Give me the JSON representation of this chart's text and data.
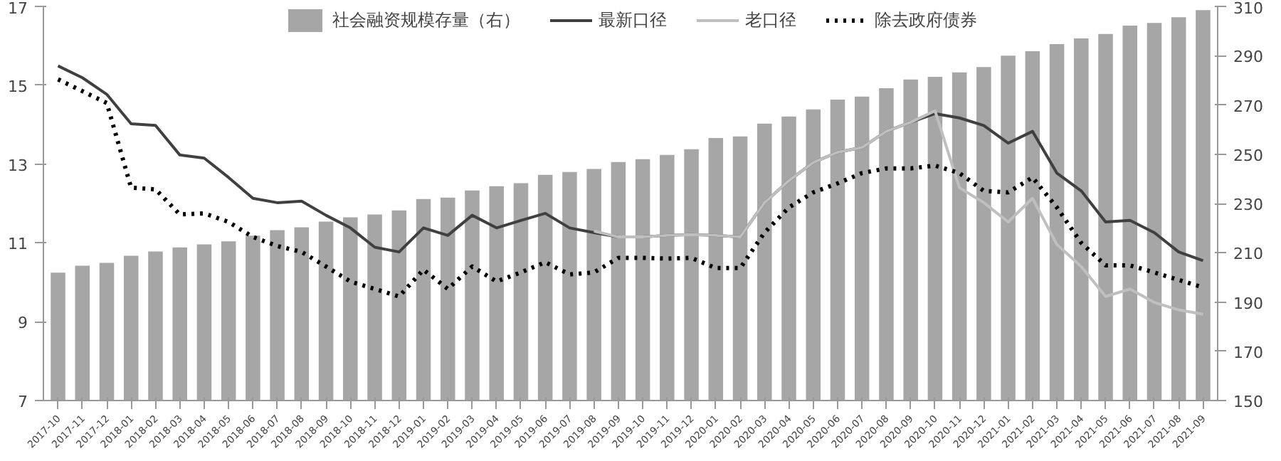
{
  "chart_data": {
    "type": "line",
    "categories": [
      "2017-10",
      "2017-11",
      "2017-12",
      "2018-01",
      "2018-02",
      "2018-03",
      "2018-04",
      "2018-05",
      "2018-06",
      "2018-07",
      "2018-08",
      "2018-09",
      "2018-10",
      "2018-11",
      "2018-12",
      "2019-01",
      "2019-02",
      "2019-03",
      "2019-04",
      "2019-05",
      "2019-06",
      "2019-07",
      "2019-08",
      "2019-09",
      "2019-10",
      "2019-11",
      "2019-12",
      "2020-01",
      "2020-02",
      "2020-03",
      "2020-04",
      "2020-05",
      "2020-06",
      "2020-07",
      "2020-08",
      "2020-09",
      "2020-10",
      "2020-11",
      "2020-12",
      "2021-01",
      "2021-02",
      "2021-03",
      "2021-04",
      "2021-05",
      "2021-06",
      "2021-07",
      "2021-08",
      "2021-09"
    ],
    "series": [
      {
        "name": "社会融资规模存量（右）",
        "type": "bar",
        "axis": "y2",
        "color": "#a6a6a6",
        "values": [
          201.9,
          204.7,
          205.9,
          208.8,
          210.5,
          212.2,
          213.4,
          214.6,
          216.9,
          219.2,
          220.3,
          222.6,
          224.4,
          225.5,
          227.2,
          231.8,
          232.4,
          235.3,
          237.0,
          238.2,
          241.6,
          242.8,
          244.0,
          246.8,
          248.0,
          249.7,
          252.0,
          256.6,
          257.2,
          262.4,
          265.3,
          268.2,
          272.2,
          273.4,
          276.8,
          280.3,
          281.4,
          283.2,
          285.4,
          290.0,
          291.8,
          294.7,
          297.0,
          298.8,
          302.2,
          303.3,
          305.6,
          308.5
        ]
      },
      {
        "name": "最新口径",
        "color": "#404040",
        "line_style": "solid",
        "values": [
          15.49,
          15.19,
          14.77,
          14.02,
          13.98,
          13.23,
          13.15,
          12.66,
          12.13,
          12.02,
          12.06,
          11.7,
          11.38,
          10.89,
          10.77,
          11.38,
          11.19,
          11.7,
          11.38,
          11.57,
          11.75,
          11.38,
          11.26,
          11.15,
          11.15,
          11.19,
          11.21,
          11.19,
          11.15,
          12.02,
          12.58,
          13.04,
          13.3,
          13.42,
          13.83,
          14.06,
          14.28,
          14.17,
          13.98,
          13.53,
          13.83,
          12.77,
          12.32,
          11.53,
          11.57,
          11.26,
          10.77,
          10.55
        ]
      },
      {
        "name": "老口径",
        "color": "#bfbfbf",
        "line_style": "solid",
        "values": [
          null,
          null,
          null,
          null,
          null,
          null,
          null,
          null,
          null,
          null,
          null,
          null,
          null,
          null,
          null,
          null,
          null,
          null,
          null,
          null,
          null,
          null,
          11.3,
          11.15,
          11.15,
          11.19,
          11.21,
          11.19,
          11.15,
          12.02,
          12.58,
          13.04,
          13.3,
          13.42,
          13.83,
          14.06,
          14.35,
          12.4,
          12.02,
          11.53,
          12.13,
          10.96,
          10.4,
          9.64,
          9.83,
          9.49,
          9.3,
          9.19
        ]
      },
      {
        "name": "除去政府债券",
        "color": "#000000",
        "line_style": "dotted",
        "values": [
          15.15,
          14.85,
          14.55,
          12.4,
          12.36,
          11.72,
          11.75,
          11.53,
          11.15,
          10.92,
          10.77,
          10.4,
          10.02,
          9.83,
          9.64,
          10.32,
          9.83,
          10.4,
          10.02,
          10.25,
          10.51,
          10.2,
          10.25,
          10.62,
          10.62,
          10.6,
          10.62,
          10.36,
          10.36,
          11.26,
          11.9,
          12.28,
          12.51,
          12.77,
          12.89,
          12.89,
          12.96,
          12.77,
          12.32,
          12.28,
          12.66,
          11.9,
          11.0,
          10.43,
          10.43,
          10.25,
          10.06,
          9.87
        ]
      }
    ],
    "ylim": [
      7,
      17
    ],
    "yticks": [
      7,
      9,
      11,
      13,
      15,
      17
    ],
    "y2lim": [
      150,
      310
    ],
    "y2ticks": [
      150,
      170,
      190,
      210,
      230,
      250,
      270,
      290,
      310
    ],
    "grid": false,
    "legend": "top",
    "marker": "none"
  }
}
